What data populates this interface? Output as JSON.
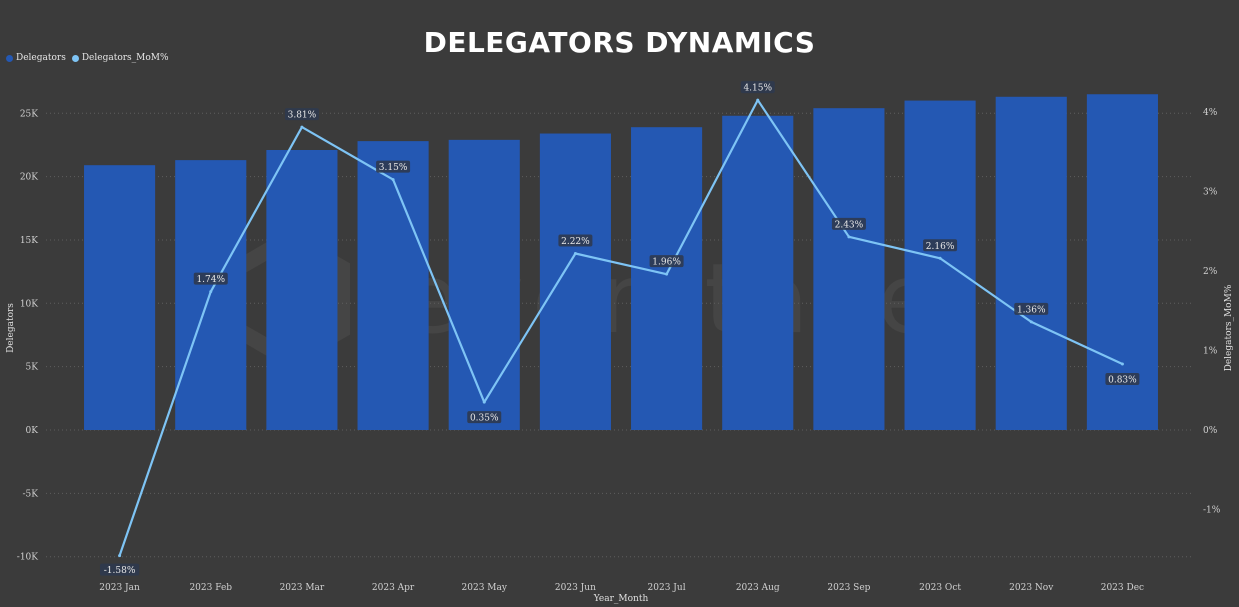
{
  "title": "DELEGATORS DYNAMICS",
  "watermark": "everstake",
  "colors": {
    "background": "#3b3b3b",
    "bar": "#2458b3",
    "line": "#7ec4f5",
    "grid": "#5e5e5e",
    "label_bg": "#2f3a4f"
  },
  "legend": [
    {
      "label": "Delegators",
      "color": "#2458b3"
    },
    {
      "label": "Delegators_MoM%",
      "color": "#7ec4f5"
    }
  ],
  "chart_data": {
    "type": "bar",
    "title": "DELEGATORS DYNAMICS",
    "xlabel": "Year_Month",
    "ylabel": "Delegators",
    "y2label": "Delegators_MoM%",
    "categories": [
      "2023 Jan",
      "2023 Feb",
      "2023 Mar",
      "2023 Apr",
      "2023 May",
      "2023 Jun",
      "2023 Jul",
      "2023 Aug",
      "2023 Sep",
      "2023 Oct",
      "2023 Nov",
      "2023 Dec"
    ],
    "series": [
      {
        "name": "Delegators",
        "type": "bar",
        "axis": "left",
        "values": [
          20900,
          21300,
          22100,
          22800,
          22900,
          23400,
          23900,
          24800,
          25400,
          26000,
          26300,
          26500
        ]
      },
      {
        "name": "Delegators_MoM%",
        "type": "line",
        "axis": "right",
        "values": [
          -1.58,
          1.74,
          3.81,
          3.15,
          0.35,
          2.22,
          1.96,
          4.15,
          2.43,
          2.16,
          1.36,
          0.83
        ],
        "labels": [
          "-1.58%",
          "1.74%",
          "3.81%",
          "3.15%",
          "0.35%",
          "2.22%",
          "1.96%",
          "4.15%",
          "2.43%",
          "2.16%",
          "1.36%",
          "0.83%"
        ]
      }
    ],
    "ylim": [
      -10000,
      25000
    ],
    "y_ticks": [
      -10000,
      -5000,
      0,
      5000,
      10000,
      15000,
      20000,
      25000
    ],
    "y_tick_labels": [
      "-10K",
      "-5K",
      "0K",
      "5K",
      "10K",
      "15K",
      "20K",
      "25K"
    ],
    "y2lim": [
      -1,
      4
    ],
    "y2_ticks": [
      -1,
      0,
      1,
      2,
      3,
      4
    ],
    "y2_tick_labels": [
      "-1%",
      "0%",
      "1%",
      "2%",
      "3%",
      "4%"
    ],
    "grid": true,
    "legend_position": "top-left"
  }
}
